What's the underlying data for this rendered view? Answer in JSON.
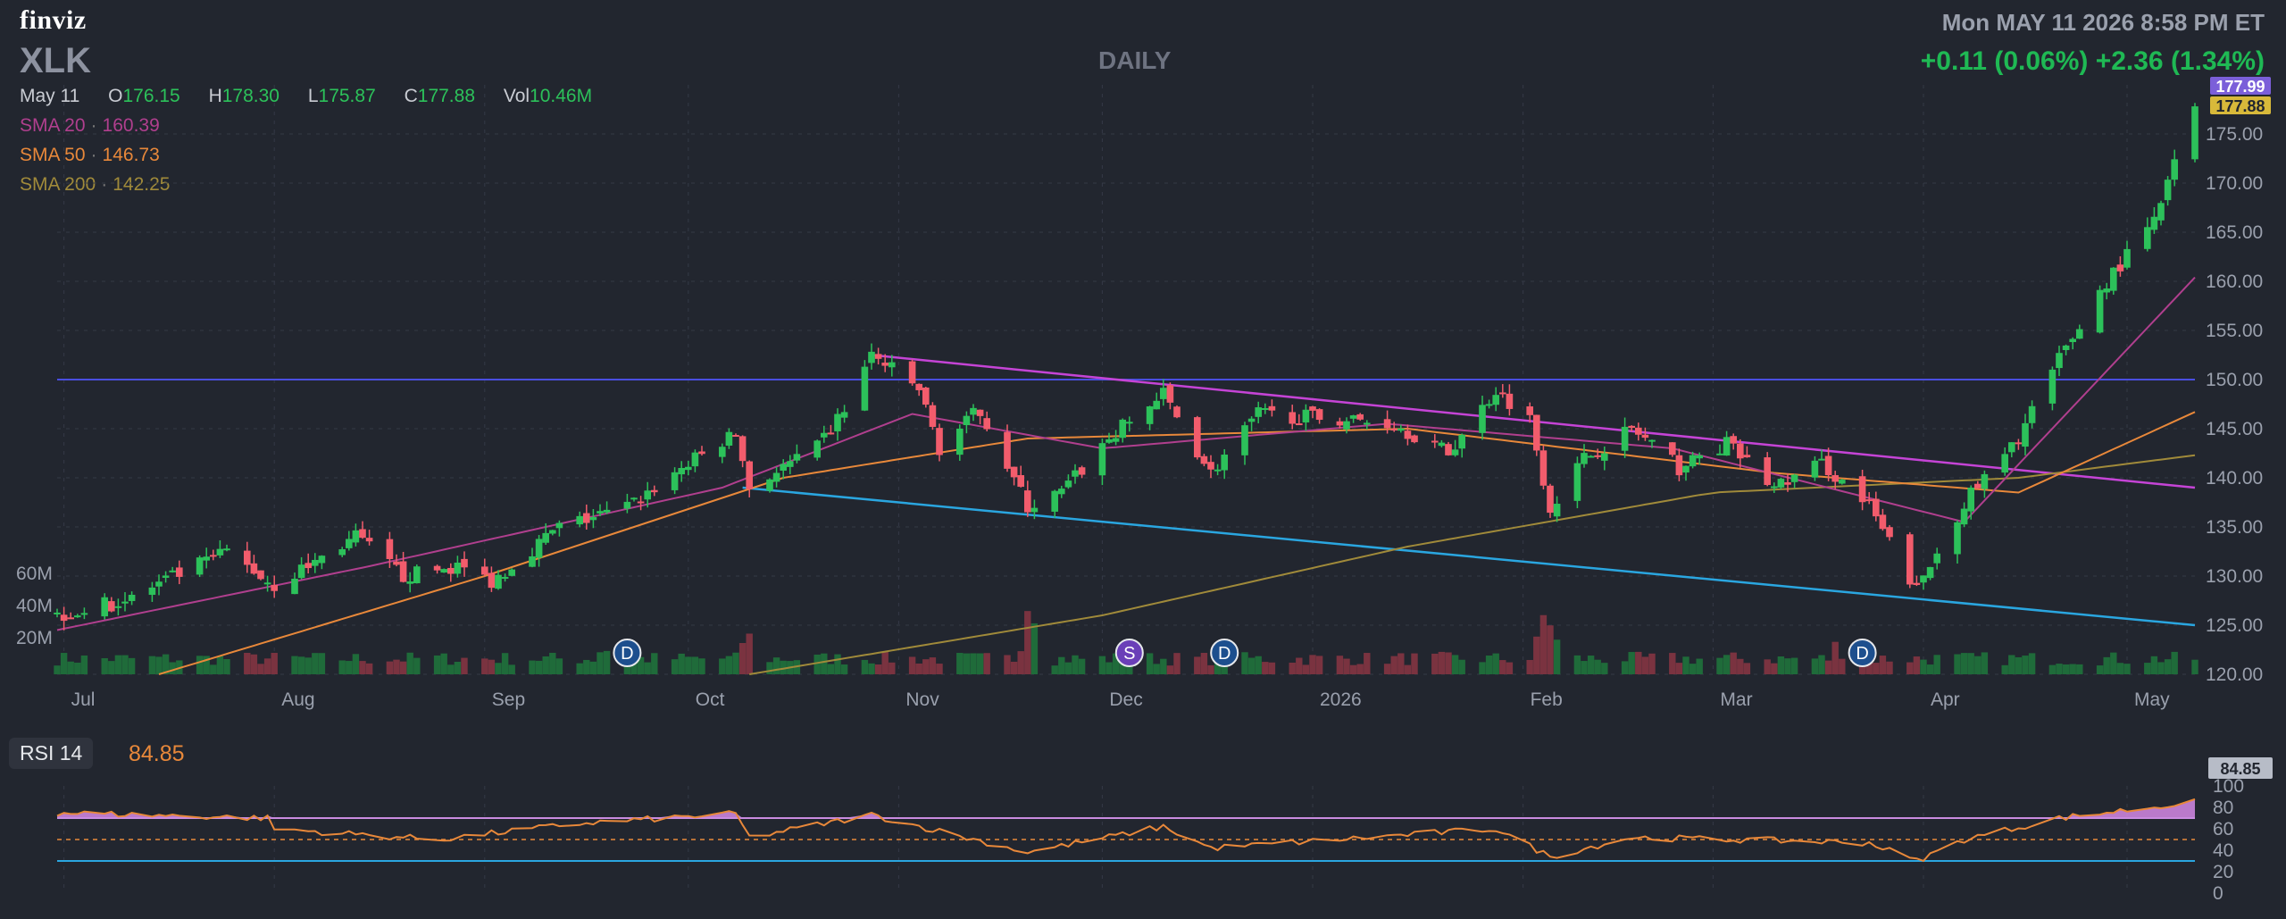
{
  "header": {
    "logo": "finviz",
    "ticker": "XLK",
    "timeframe": "DAILY",
    "datetime": "Mon MAY 11 2026 8:58 PM ET",
    "change": "+0.11 (0.06%)  +2.36 (1.34%)"
  },
  "ohlc": {
    "date": "May 11",
    "open_label": "O",
    "open": "176.15",
    "high_label": "H",
    "high": "178.30",
    "low_label": "L",
    "low": "175.87",
    "close_label": "C",
    "close": "177.88",
    "vol_label": "Vol",
    "vol": "10.46M"
  },
  "indicators": {
    "sma20": {
      "label": "SMA 20",
      "value": "160.39",
      "color": "#b03f8e"
    },
    "sma50": {
      "label": "SMA 50",
      "value": "146.73",
      "color": "#e8883a"
    },
    "sma200": {
      "label": "SMA 200",
      "value": "142.25",
      "color": "#a08a3a"
    }
  },
  "rsi": {
    "label": "RSI 14",
    "value": "84.85"
  },
  "colors": {
    "up": "#2cc15a",
    "down": "#f25c6c",
    "background": "#22262f",
    "grid": "#343946",
    "upper_trendline": "#c544d6",
    "lower_trendline": "#2aa6e0",
    "horizontal_line": "#4a4ee0"
  },
  "chart_data": {
    "type": "candlestick",
    "x_ticks": [
      "Jul",
      "Aug",
      "Sep",
      "Oct",
      "Nov",
      "Dec",
      "2026",
      "Feb",
      "Mar",
      "Apr",
      "May"
    ],
    "y_ticks": [
      "120.00",
      "125.00",
      "130.00",
      "135.00",
      "140.00",
      "145.00",
      "150.00",
      "155.00",
      "160.00",
      "165.00",
      "170.00",
      "175.00"
    ],
    "ylim": [
      120,
      180
    ],
    "volume_ticks": [
      "20M",
      "40M",
      "60M"
    ],
    "last_price_badges": [
      "177.99",
      "177.88"
    ],
    "event_markers": [
      {
        "date": "2025-09-22",
        "label": "D"
      },
      {
        "date": "2025-12-05",
        "label": "S"
      },
      {
        "date": "2025-12-19",
        "label": "D"
      },
      {
        "date": "2026-03-23",
        "label": "D"
      }
    ],
    "horizontal_line": 150.0,
    "upper_trendline": [
      [
        "2025-10-28",
        152.5
      ],
      [
        "2026-05-11",
        139.0
      ]
    ],
    "lower_trendline": [
      [
        "2025-10-09",
        139.0
      ],
      [
        "2026-05-11",
        125.0
      ]
    ],
    "price_keypoints": [
      [
        "2025-06-30",
        126.0
      ],
      [
        "2025-07-10",
        127.5
      ],
      [
        "2025-07-25",
        132.5
      ],
      [
        "2025-08-01",
        129.0
      ],
      [
        "2025-08-13",
        134.0
      ],
      [
        "2025-08-20",
        130.0
      ],
      [
        "2025-08-28",
        131.0
      ],
      [
        "2025-09-02",
        129.5
      ],
      [
        "2025-09-12",
        135.0
      ],
      [
        "2025-09-22",
        137.0
      ],
      [
        "2025-09-30",
        141.0
      ],
      [
        "2025-10-08",
        144.5
      ],
      [
        "2025-10-10",
        139.0
      ],
      [
        "2025-10-20",
        143.0
      ],
      [
        "2025-10-24",
        147.0
      ],
      [
        "2025-10-28",
        152.5
      ],
      [
        "2025-11-04",
        149.0
      ],
      [
        "2025-11-07",
        143.0
      ],
      [
        "2025-11-13",
        147.0
      ],
      [
        "2025-11-20",
        137.0
      ],
      [
        "2025-11-25",
        138.5
      ],
      [
        "2025-12-02",
        144.0
      ],
      [
        "2025-12-10",
        148.5
      ],
      [
        "2025-12-17",
        140.5
      ],
      [
        "2025-12-24",
        146.5
      ],
      [
        "2026-01-05",
        146.0
      ],
      [
        "2026-01-13",
        145.5
      ],
      [
        "2026-01-21",
        142.5
      ],
      [
        "2026-01-28",
        149.0
      ],
      [
        "2026-02-02",
        146.0
      ],
      [
        "2026-02-05",
        137.0
      ],
      [
        "2026-02-10",
        142.0
      ],
      [
        "2026-02-17",
        145.0
      ],
      [
        "2026-02-24",
        141.0
      ],
      [
        "2026-03-03",
        143.5
      ],
      [
        "2026-03-10",
        139.0
      ],
      [
        "2026-03-17",
        141.5
      ],
      [
        "2026-03-24",
        137.0
      ],
      [
        "2026-03-31",
        128.5
      ],
      [
        "2026-04-07",
        137.5
      ],
      [
        "2026-04-14",
        143.0
      ],
      [
        "2026-04-21",
        152.0
      ],
      [
        "2026-04-28",
        160.0
      ],
      [
        "2026-05-05",
        166.0
      ],
      [
        "2026-05-11",
        177.88
      ]
    ],
    "sma20_keypoints": [
      [
        "2025-06-30",
        124.5
      ],
      [
        "2025-08-15",
        131.0
      ],
      [
        "2025-10-06",
        139.0
      ],
      [
        "2025-11-03",
        146.5
      ],
      [
        "2025-12-01",
        143.0
      ],
      [
        "2026-01-12",
        145.5
      ],
      [
        "2026-02-23",
        143.0
      ],
      [
        "2026-04-07",
        135.5
      ],
      [
        "2026-05-11",
        160.4
      ]
    ],
    "sma50_keypoints": [
      [
        "2025-07-15",
        120.0
      ],
      [
        "2025-09-01",
        130.0
      ],
      [
        "2025-10-15",
        140.0
      ],
      [
        "2025-11-20",
        144.0
      ],
      [
        "2026-01-15",
        145.0
      ],
      [
        "2026-03-10",
        140.5
      ],
      [
        "2026-04-15",
        138.5
      ],
      [
        "2026-05-11",
        146.7
      ]
    ],
    "sma200_keypoints": [
      [
        "2025-10-10",
        120.0
      ],
      [
        "2025-12-01",
        126.0
      ],
      [
        "2026-01-15",
        133.0
      ],
      [
        "2026-03-01",
        138.5
      ],
      [
        "2026-04-15",
        140.0
      ],
      [
        "2026-05-11",
        142.3
      ]
    ],
    "rsi_keypoints": [
      [
        "2025-06-30",
        75
      ],
      [
        "2025-07-31",
        70
      ],
      [
        "2025-08-01",
        60
      ],
      [
        "2025-08-25",
        50
      ],
      [
        "2025-09-15",
        65
      ],
      [
        "2025-10-08",
        74
      ],
      [
        "2025-10-10",
        52
      ],
      [
        "2025-10-28",
        73
      ],
      [
        "2025-11-20",
        38
      ],
      [
        "2025-12-10",
        62
      ],
      [
        "2025-12-17",
        42
      ],
      [
        "2026-01-28",
        60
      ],
      [
        "2026-02-05",
        34
      ],
      [
        "2026-02-17",
        52
      ],
      [
        "2026-03-24",
        47
      ],
      [
        "2026-03-31",
        30
      ],
      [
        "2026-04-07",
        50
      ],
      [
        "2026-04-21",
        70
      ],
      [
        "2026-05-11",
        84.85
      ]
    ],
    "rsi_levels": [
      30,
      50,
      70
    ],
    "rsi_ticks": [
      "0",
      "20",
      "40",
      "60",
      "80",
      "100"
    ],
    "rsi_badge": "84.85"
  }
}
